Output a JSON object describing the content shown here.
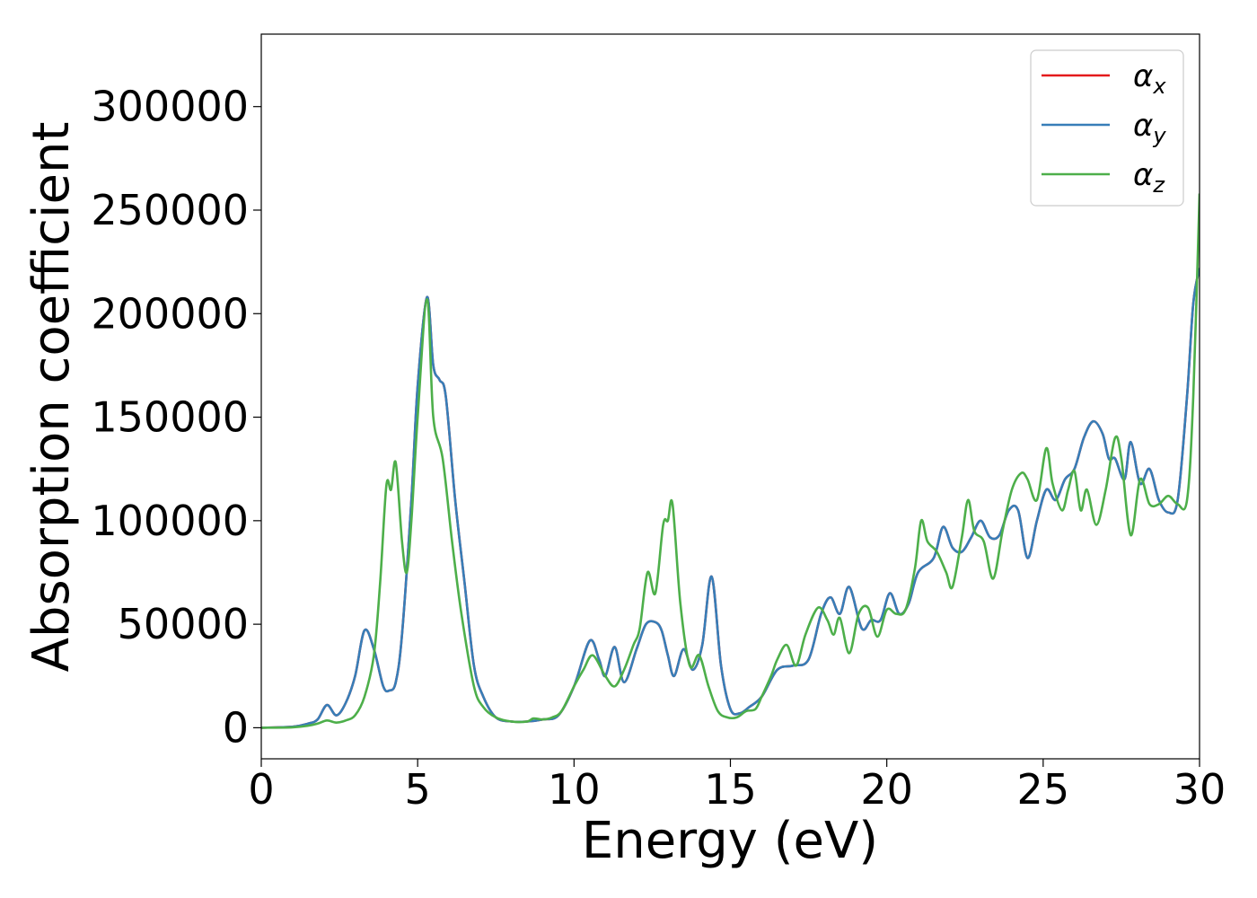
{
  "chart_data": {
    "type": "line",
    "xlabel": "Energy (eV)",
    "ylabel": "Absorption coefficient",
    "xlim": [
      0,
      30
    ],
    "ylim": [
      -15000,
      335000
    ],
    "xticks": [
      0,
      5,
      10,
      15,
      20,
      25,
      30
    ],
    "xtick_labels": [
      "0",
      "5",
      "10",
      "15",
      "20",
      "25",
      "30"
    ],
    "yticks": [
      0,
      50000,
      100000,
      150000,
      200000,
      250000,
      300000
    ],
    "ytick_labels": [
      "0",
      "50000",
      "100000",
      "150000",
      "200000",
      "250000",
      "300000"
    ],
    "grid": false,
    "legend_position": "top-right",
    "series": [
      {
        "name": "α",
        "subscript": "x",
        "color": "#e41a1c",
        "x": [
          0,
          1,
          1.5,
          1.8,
          2.1,
          2.4,
          2.7,
          3.0,
          3.3,
          3.6,
          3.9,
          4.1,
          4.3,
          4.5,
          4.8,
          5.0,
          5.3,
          5.5,
          5.7,
          5.9,
          6.2,
          6.5,
          6.8,
          7.1,
          7.5,
          8.0,
          8.5,
          9.0,
          9.5,
          10.0,
          10.5,
          10.8,
          11.0,
          11.3,
          11.6,
          12.0,
          12.3,
          12.6,
          12.8,
          13.0,
          13.2,
          13.5,
          13.8,
          14.1,
          14.4,
          14.7,
          15.0,
          15.3,
          15.6,
          16.0,
          16.5,
          17.0,
          17.5,
          17.9,
          18.2,
          18.5,
          18.8,
          19.2,
          19.5,
          19.8,
          20.1,
          20.4,
          20.7,
          21.0,
          21.5,
          21.8,
          22.1,
          22.4,
          22.7,
          23.0,
          23.3,
          23.6,
          23.9,
          24.2,
          24.5,
          24.8,
          25.1,
          25.4,
          25.7,
          26.0,
          26.3,
          26.6,
          26.9,
          27.1,
          27.3,
          27.6,
          27.8,
          28.1,
          28.4,
          28.7,
          29.0,
          29.3,
          29.6,
          29.8,
          30.0
        ],
        "y": [
          0,
          500,
          2000,
          4000,
          11000,
          6000,
          12000,
          25000,
          47000,
          38000,
          20000,
          18000,
          22000,
          45000,
          110000,
          165000,
          208000,
          175000,
          168000,
          160000,
          110000,
          70000,
          30000,
          15000,
          5000,
          3000,
          3000,
          4000,
          6000,
          20000,
          42000,
          33000,
          25000,
          39000,
          22000,
          38000,
          50000,
          51000,
          47000,
          35000,
          25000,
          38000,
          28000,
          40000,
          73000,
          30000,
          9000,
          7000,
          10000,
          15000,
          28000,
          30000,
          33000,
          55000,
          63000,
          55000,
          68000,
          48000,
          52000,
          52000,
          65000,
          55000,
          60000,
          75000,
          82000,
          97000,
          87000,
          85000,
          92000,
          100000,
          92000,
          93000,
          105000,
          105000,
          82000,
          100000,
          115000,
          110000,
          120000,
          125000,
          140000,
          148000,
          142000,
          130000,
          130000,
          120000,
          138000,
          118000,
          125000,
          110000,
          104000,
          110000,
          160000,
          205000,
          222000
        ]
      },
      {
        "name": "α",
        "subscript": "y",
        "color": "#377eb8",
        "x": [
          0,
          1,
          1.5,
          1.8,
          2.1,
          2.4,
          2.7,
          3.0,
          3.3,
          3.6,
          3.9,
          4.1,
          4.3,
          4.5,
          4.8,
          5.0,
          5.3,
          5.5,
          5.7,
          5.9,
          6.2,
          6.5,
          6.8,
          7.1,
          7.5,
          8.0,
          8.5,
          9.0,
          9.5,
          10.0,
          10.5,
          10.8,
          11.0,
          11.3,
          11.6,
          12.0,
          12.3,
          12.6,
          12.8,
          13.0,
          13.2,
          13.5,
          13.8,
          14.1,
          14.4,
          14.7,
          15.0,
          15.3,
          15.6,
          16.0,
          16.5,
          17.0,
          17.5,
          17.9,
          18.2,
          18.5,
          18.8,
          19.2,
          19.5,
          19.8,
          20.1,
          20.4,
          20.7,
          21.0,
          21.5,
          21.8,
          22.1,
          22.4,
          22.7,
          23.0,
          23.3,
          23.6,
          23.9,
          24.2,
          24.5,
          24.8,
          25.1,
          25.4,
          25.7,
          26.0,
          26.3,
          26.6,
          26.9,
          27.1,
          27.3,
          27.6,
          27.8,
          28.1,
          28.4,
          28.7,
          29.0,
          29.3,
          29.6,
          29.8,
          30.0
        ],
        "y": [
          0,
          500,
          2000,
          4000,
          11000,
          6000,
          12000,
          25000,
          47000,
          38000,
          20000,
          18000,
          22000,
          45000,
          110000,
          165000,
          208000,
          175000,
          168000,
          160000,
          110000,
          70000,
          30000,
          15000,
          5000,
          3000,
          3000,
          4000,
          6000,
          20000,
          42000,
          33000,
          25000,
          39000,
          22000,
          38000,
          50000,
          51000,
          47000,
          35000,
          25000,
          38000,
          28000,
          40000,
          73000,
          30000,
          9000,
          7000,
          10000,
          15000,
          28000,
          30000,
          33000,
          55000,
          63000,
          55000,
          68000,
          48000,
          52000,
          52000,
          65000,
          55000,
          60000,
          75000,
          82000,
          97000,
          87000,
          85000,
          92000,
          100000,
          92000,
          93000,
          105000,
          105000,
          82000,
          100000,
          115000,
          110000,
          120000,
          125000,
          140000,
          148000,
          142000,
          130000,
          130000,
          120000,
          138000,
          118000,
          125000,
          110000,
          104000,
          110000,
          160000,
          205000,
          222000
        ]
      },
      {
        "name": "α",
        "subscript": "z",
        "color": "#4daf4a",
        "x": [
          0,
          1,
          1.5,
          1.8,
          2.1,
          2.4,
          2.7,
          3.0,
          3.3,
          3.6,
          3.8,
          4.0,
          4.15,
          4.3,
          4.5,
          4.65,
          4.8,
          5.0,
          5.3,
          5.5,
          5.8,
          6.1,
          6.4,
          6.8,
          7.1,
          7.5,
          8.0,
          8.5,
          8.7,
          9.0,
          9.3,
          9.6,
          10.0,
          10.3,
          10.6,
          11.0,
          11.3,
          11.6,
          11.9,
          12.1,
          12.35,
          12.6,
          12.85,
          13.0,
          13.15,
          13.4,
          13.7,
          14.0,
          14.3,
          14.6,
          14.9,
          15.2,
          15.5,
          15.8,
          16.0,
          16.3,
          16.5,
          16.8,
          17.1,
          17.4,
          17.8,
          18.1,
          18.3,
          18.5,
          18.8,
          19.1,
          19.4,
          19.7,
          20.0,
          20.3,
          20.6,
          20.9,
          21.1,
          21.3,
          21.6,
          21.9,
          22.1,
          22.4,
          22.6,
          22.8,
          23.1,
          23.4,
          23.7,
          24.0,
          24.3,
          24.5,
          24.8,
          25.1,
          25.3,
          25.6,
          25.8,
          26.0,
          26.2,
          26.4,
          26.7,
          27.0,
          27.3,
          27.5,
          27.8,
          28.1,
          28.4,
          28.7,
          29.0,
          29.3,
          29.6,
          29.8,
          30.0
        ],
        "y": [
          0,
          200,
          1000,
          2000,
          3500,
          2500,
          3500,
          6000,
          15000,
          35000,
          70000,
          117000,
          115000,
          128000,
          90000,
          75000,
          100000,
          150000,
          207000,
          150000,
          130000,
          90000,
          55000,
          20000,
          10000,
          5000,
          3000,
          3000,
          4500,
          4000,
          5000,
          8000,
          20000,
          28000,
          35000,
          25000,
          20000,
          28000,
          40000,
          48000,
          75000,
          65000,
          98000,
          100000,
          108000,
          60000,
          30000,
          35000,
          20000,
          8000,
          5000,
          5000,
          8000,
          9000,
          15000,
          25000,
          33000,
          40000,
          30000,
          45000,
          58000,
          52000,
          45000,
          53000,
          36000,
          55000,
          58000,
          44000,
          57000,
          55000,
          57000,
          77000,
          100000,
          90000,
          85000,
          75000,
          68000,
          92000,
          110000,
          95000,
          90000,
          72000,
          95000,
          115000,
          123000,
          120000,
          110000,
          135000,
          118000,
          105000,
          115000,
          124000,
          105000,
          115000,
          98000,
          115000,
          140000,
          130000,
          93000,
          120000,
          108000,
          108000,
          112000,
          108000,
          110000,
          160000,
          258000
        ]
      }
    ]
  }
}
